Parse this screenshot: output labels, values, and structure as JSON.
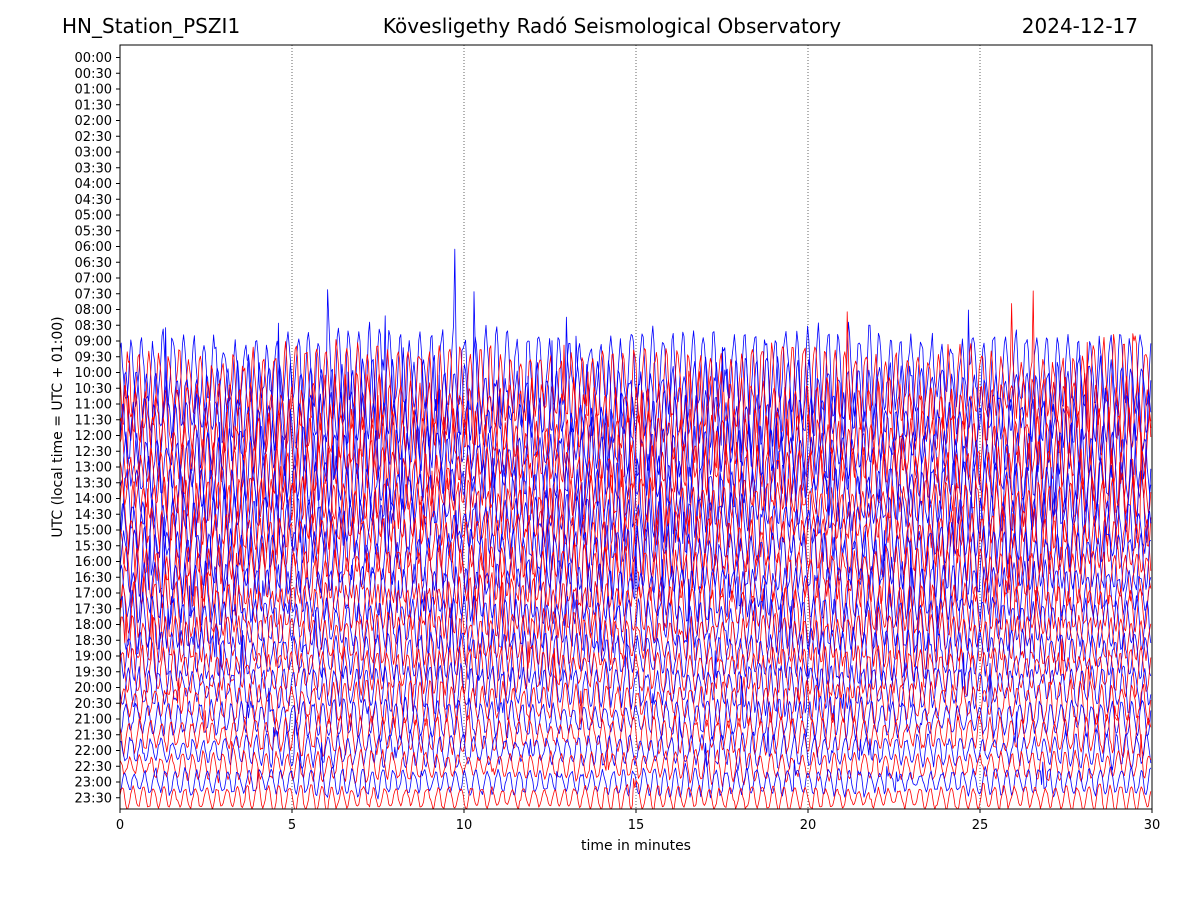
{
  "header": {
    "station": "HN_Station_PSZI1",
    "observatory": "Kövesligethy Radó Seismological Observatory",
    "date": "2024-12-17"
  },
  "chart_data": {
    "type": "line",
    "title": "Kövesligethy Radó Seismological Observatory",
    "xlabel": "time in minutes",
    "ylabel": "UTC (local time = UTC + 01:00)",
    "xlim": [
      0,
      30
    ],
    "x_ticks": [
      0,
      5,
      10,
      15,
      20,
      25,
      30
    ],
    "vertical_gridlines_at": [
      5,
      10,
      15,
      20,
      25
    ],
    "grid_style": "dotted vertical lines every 5 minutes",
    "y_tick_labels": [
      "00:00",
      "00:30",
      "01:00",
      "01:30",
      "02:00",
      "02:30",
      "03:00",
      "03:30",
      "04:00",
      "04:30",
      "05:00",
      "05:30",
      "06:00",
      "06:30",
      "07:00",
      "07:30",
      "08:00",
      "08:30",
      "09:00",
      "09:30",
      "10:00",
      "10:30",
      "11:00",
      "11:30",
      "12:00",
      "12:30",
      "13:00",
      "13:30",
      "14:00",
      "14:30",
      "15:00",
      "15:30",
      "16:00",
      "16:30",
      "17:00",
      "17:30",
      "18:00",
      "18:30",
      "19:00",
      "19:30",
      "20:00",
      "20:30",
      "21:00",
      "21:30",
      "22:00",
      "22:30",
      "23:00",
      "23:30"
    ],
    "trace_colors": [
      "#0000ff",
      "#ff0000"
    ],
    "color_pattern": "traces alternate blue and red, one trace per 30-minute row",
    "traces_present_from": "10:00",
    "amplitude_note": "noise amplitude large during daytime, decreasing toward 23:30"
  }
}
